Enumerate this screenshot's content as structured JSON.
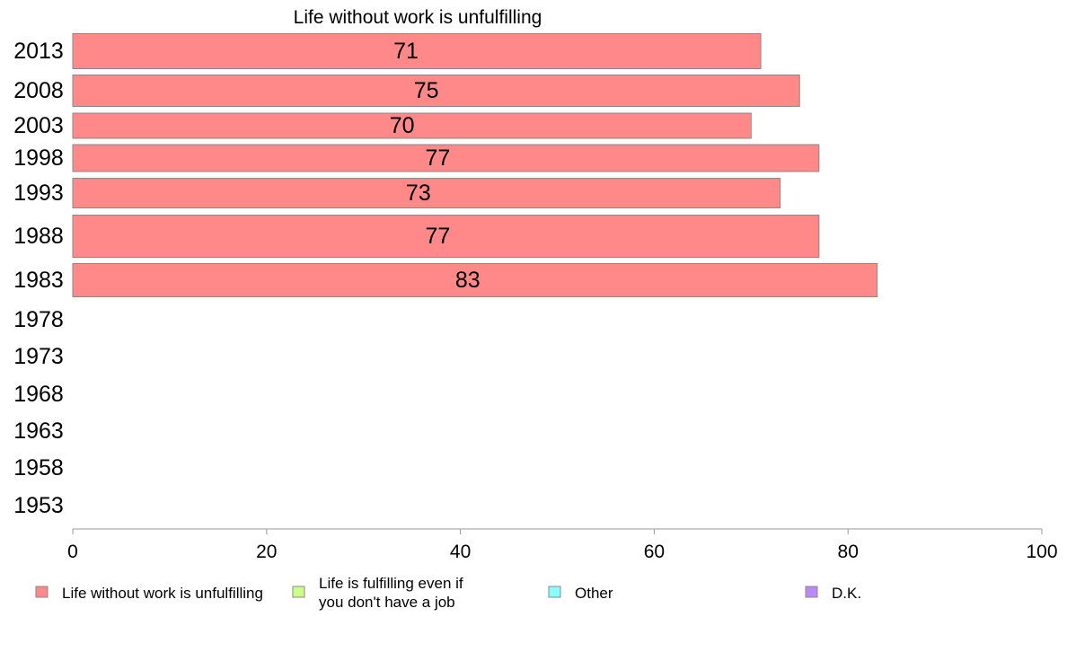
{
  "chart_data": {
    "type": "bar",
    "orientation": "horizontal",
    "title": "Life without work is unfulfilling",
    "xlabel": "",
    "ylabel": "",
    "xlim": [
      0,
      100
    ],
    "x_ticks": [
      0,
      20,
      40,
      60,
      80,
      100
    ],
    "categories": [
      "2013",
      "2008",
      "2003",
      "1998",
      "1993",
      "1988",
      "1983",
      "1978",
      "1973",
      "1968",
      "1963",
      "1958",
      "1953"
    ],
    "series": [
      {
        "name": "Life without work is unfulfilling",
        "color": "#ff8888",
        "values": [
          71,
          75,
          70,
          77,
          73,
          77,
          83,
          null,
          null,
          null,
          null,
          null,
          null
        ],
        "labels": [
          "71",
          "75",
          "70",
          "77",
          "73",
          "77",
          "83",
          "",
          "",
          "",
          "",
          "",
          ""
        ]
      }
    ],
    "legend": {
      "placement": "bottom",
      "items": [
        {
          "label_lines": [
            "Life without work is unfulfilling"
          ],
          "color": "#ff8888"
        },
        {
          "label_lines": [
            "Life is fulfilling even if",
            "you don't have a job"
          ],
          "color": "#ccff88"
        },
        {
          "label_lines": [
            "Other"
          ],
          "color": "#88ffff"
        },
        {
          "label_lines": [
            "D.K."
          ],
          "color": "#bb88ff"
        }
      ]
    },
    "grid": false
  }
}
